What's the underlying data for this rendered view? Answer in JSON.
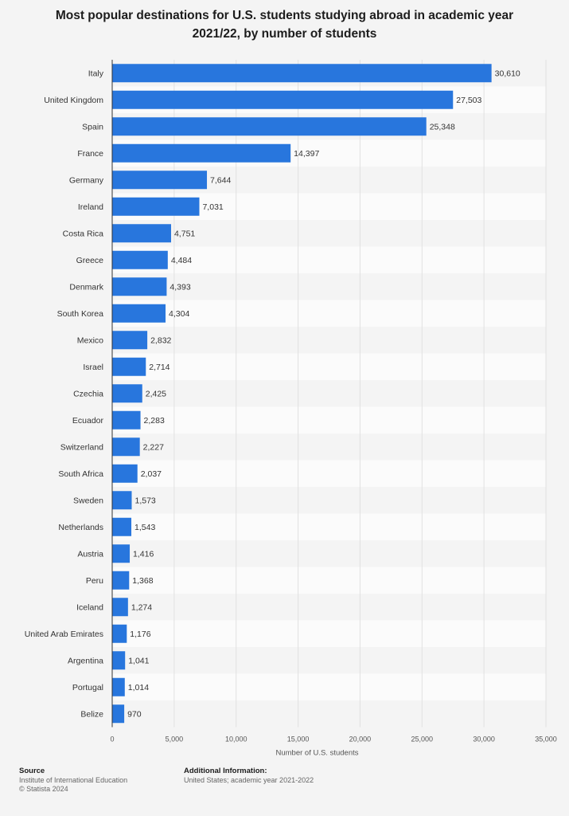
{
  "chart_data": {
    "type": "bar",
    "orientation": "horizontal",
    "title": "Most popular destinations for U.S. students studying abroad in academic year 2021/22, by number of students",
    "xlabel": "Number of U.S. students",
    "ylabel": "",
    "xlim": [
      0,
      35000
    ],
    "x_ticks": [
      0,
      5000,
      10000,
      15000,
      20000,
      25000,
      30000,
      35000
    ],
    "x_tick_labels": [
      "0",
      "5,000",
      "10,000",
      "15,000",
      "20,000",
      "25,000",
      "30,000",
      "35,000"
    ],
    "grid": true,
    "categories": [
      "Italy",
      "United Kingdom",
      "Spain",
      "France",
      "Germany",
      "Ireland",
      "Costa Rica",
      "Greece",
      "Denmark",
      "South Korea",
      "Mexico",
      "Israel",
      "Czechia",
      "Ecuador",
      "Switzerland",
      "South Africa",
      "Sweden",
      "Netherlands",
      "Austria",
      "Peru",
      "Iceland",
      "United Arab Emirates",
      "Argentina",
      "Portugal",
      "Belize"
    ],
    "values": [
      30610,
      27503,
      25348,
      14397,
      7644,
      7031,
      4751,
      4484,
      4393,
      4304,
      2832,
      2714,
      2425,
      2283,
      2227,
      2037,
      1573,
      1543,
      1416,
      1368,
      1274,
      1176,
      1041,
      1014,
      970
    ],
    "value_labels": [
      "30,610",
      "27,503",
      "25,348",
      "14,397",
      "7,644",
      "7,031",
      "4,751",
      "4,484",
      "4,393",
      "4,304",
      "2,832",
      "2,714",
      "2,425",
      "2,283",
      "2,227",
      "2,037",
      "1,573",
      "1,543",
      "1,416",
      "1,368",
      "1,274",
      "1,176",
      "1,041",
      "1,014",
      "970"
    ],
    "bar_color": "#2876dd"
  },
  "footer": {
    "source_heading": "Source",
    "source_line1": "Institute of International Education",
    "source_line2": "© Statista 2024",
    "info_heading": "Additional Information:",
    "info_line1": "United States; academic year 2021-2022"
  }
}
